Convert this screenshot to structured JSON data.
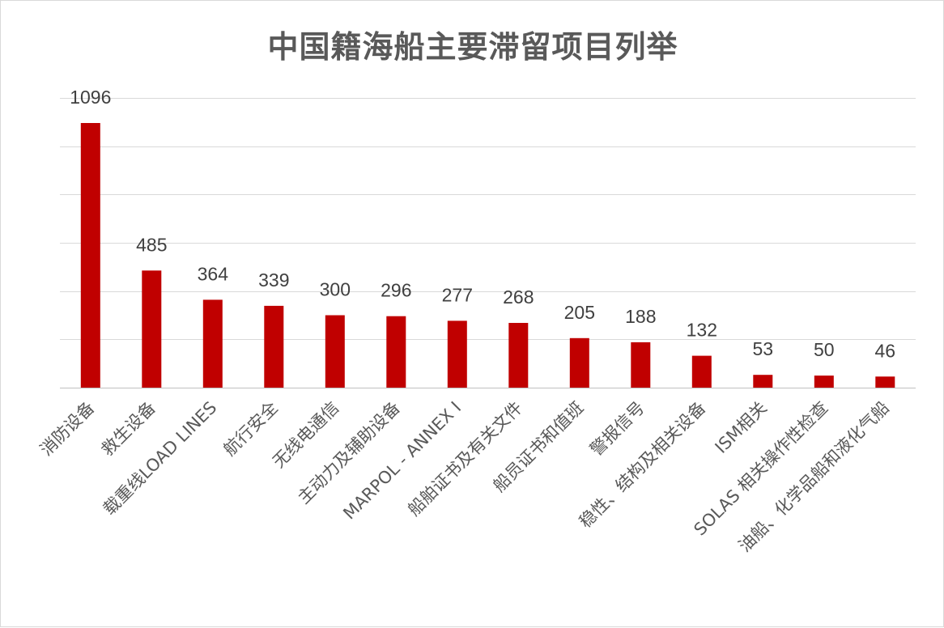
{
  "chart_data": {
    "type": "bar",
    "title": "中国籍海船主要滞留项目列举",
    "categories": [
      "消防设备",
      "救生设备",
      "载重线LOAD LINES",
      "航行安全",
      "无线电通信",
      "主动力及辅助设备",
      "MARPOL - ANNEX I",
      "船舶证书及有关文件",
      "船员证书和值班",
      "警报信号",
      "稳性、结构及相关设备",
      "ISM相关",
      "SOLAS 相关操作性检查",
      "油船、化学品船和液化气船"
    ],
    "values": [
      1096,
      485,
      364,
      339,
      300,
      296,
      277,
      268,
      205,
      188,
      132,
      53,
      50,
      46
    ],
    "data_labels": [
      "1096",
      "485",
      "364",
      "339",
      "300",
      "296",
      "277",
      "268",
      "205",
      "188",
      "132",
      "53",
      "50",
      "46"
    ],
    "xlabel": "",
    "ylabel": "",
    "ylim": [
      0,
      1200
    ],
    "grid": true,
    "legend": "none",
    "bar_color": "#c00000"
  }
}
